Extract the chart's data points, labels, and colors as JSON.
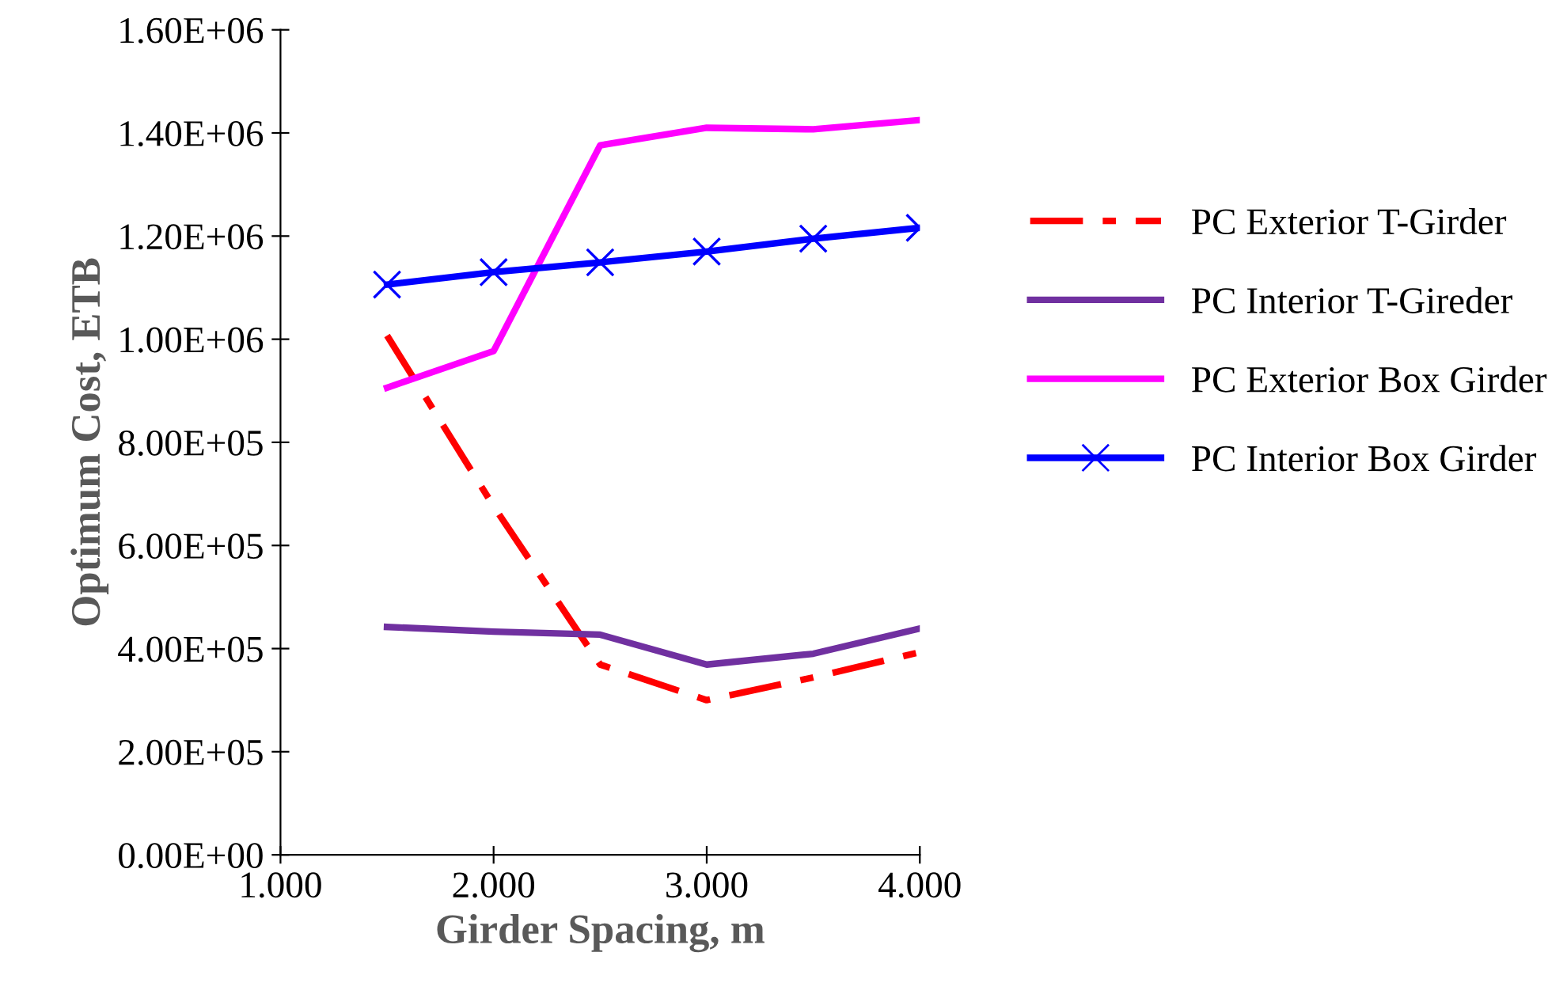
{
  "chart_data": {
    "type": "line",
    "xlabel": "Girder Spacing, m",
    "ylabel": "Optimum Cost, ETB",
    "x": [
      1.5,
      2.0,
      2.5,
      3.0,
      3.5,
      4.0
    ],
    "series": [
      {
        "name": "PC Exterior T-Girder",
        "color": "#ff0000",
        "line_style": "dashdot",
        "marker": "none",
        "values": [
          1007000,
          676000,
          369000,
          300000,
          344000,
          393000
        ]
      },
      {
        "name": "PC Interior T-Gireder",
        "color": "#7030a0",
        "line_style": "solid",
        "marker": "none",
        "values": [
          442000,
          433000,
          427000,
          369000,
          390000,
          439000
        ]
      },
      {
        "name": "PC Exterior Box Girder",
        "color": "#ff00ff",
        "line_style": "solid",
        "marker": "none",
        "values": [
          906000,
          977000,
          1376000,
          1410000,
          1407000,
          1425000
        ]
      },
      {
        "name": "PC Interior Box Girder",
        "color": "#0000ff",
        "line_style": "solid",
        "marker": "cross",
        "values": [
          1106000,
          1130000,
          1149000,
          1170000,
          1195000,
          1216000
        ]
      }
    ],
    "xlim": [
      1.0,
      4.0
    ],
    "xticks": [
      {
        "value": 1.0,
        "label": "1.000"
      },
      {
        "value": 2.0,
        "label": "2.000"
      },
      {
        "value": 3.0,
        "label": "3.000"
      },
      {
        "value": 4.0,
        "label": "4.000"
      }
    ],
    "ylim": [
      0,
      1600000
    ],
    "yticks": [
      {
        "value": 0,
        "label": "0.00E+00"
      },
      {
        "value": 200000,
        "label": "2.00E+05"
      },
      {
        "value": 400000,
        "label": "4.00E+05"
      },
      {
        "value": 600000,
        "label": "6.00E+05"
      },
      {
        "value": 800000,
        "label": "8.00E+05"
      },
      {
        "value": 1000000,
        "label": "1.00E+06"
      },
      {
        "value": 1200000,
        "label": "1.20E+06"
      },
      {
        "value": 1400000,
        "label": "1.40E+06"
      },
      {
        "value": 1600000,
        "label": "1.60E+06"
      }
    ],
    "grid": false,
    "legend": "right"
  }
}
